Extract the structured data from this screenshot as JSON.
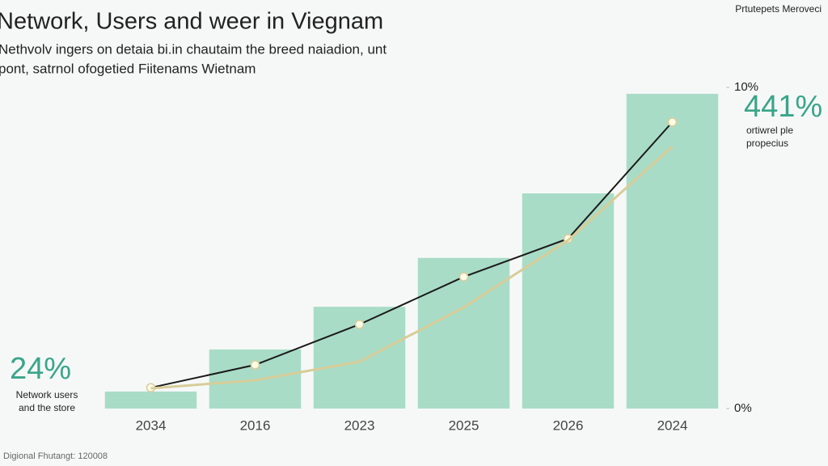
{
  "chart_data": {
    "type": "bar",
    "title": "Network, Users and weer in Viegnam",
    "subtitle": [
      "Nethvolv ingers on detaia bi.in chautaim the breed naiadion, unt",
      "pont, satrnol ofogetied Fiitenams Wietnam"
    ],
    "top_note": "Prtutepets Meroveci",
    "categories": [
      "2034",
      "2016",
      "2023",
      "2025",
      "2026",
      "2024"
    ],
    "values": [
      0.53,
      1.84,
      3.17,
      4.69,
      6.7,
      9.8
    ],
    "color": "#a9dcc7",
    "lines": [
      {
        "color": "#1a1a1a",
        "values": [
          0.65,
          1.36,
          2.62,
          4.1,
          5.29,
          8.92
        ]
      },
      {
        "color": "#d8cd98",
        "values": [
          0.63,
          0.88,
          1.46,
          3.15,
          5.24,
          8.16
        ]
      }
    ],
    "ylim": [
      0,
      10
    ],
    "yticks": [
      {
        "value": 0,
        "label": "0%"
      },
      {
        "value": 10,
        "label": "10%"
      }
    ],
    "annotations": [
      {
        "text": "441%",
        "note": [
          "ortiwrel ple",
          "propecius"
        ]
      },
      {
        "text": "24%",
        "note": [
          "Network users",
          "and the store"
        ]
      }
    ],
    "footer": "Digional Fhutangt: 120008"
  }
}
